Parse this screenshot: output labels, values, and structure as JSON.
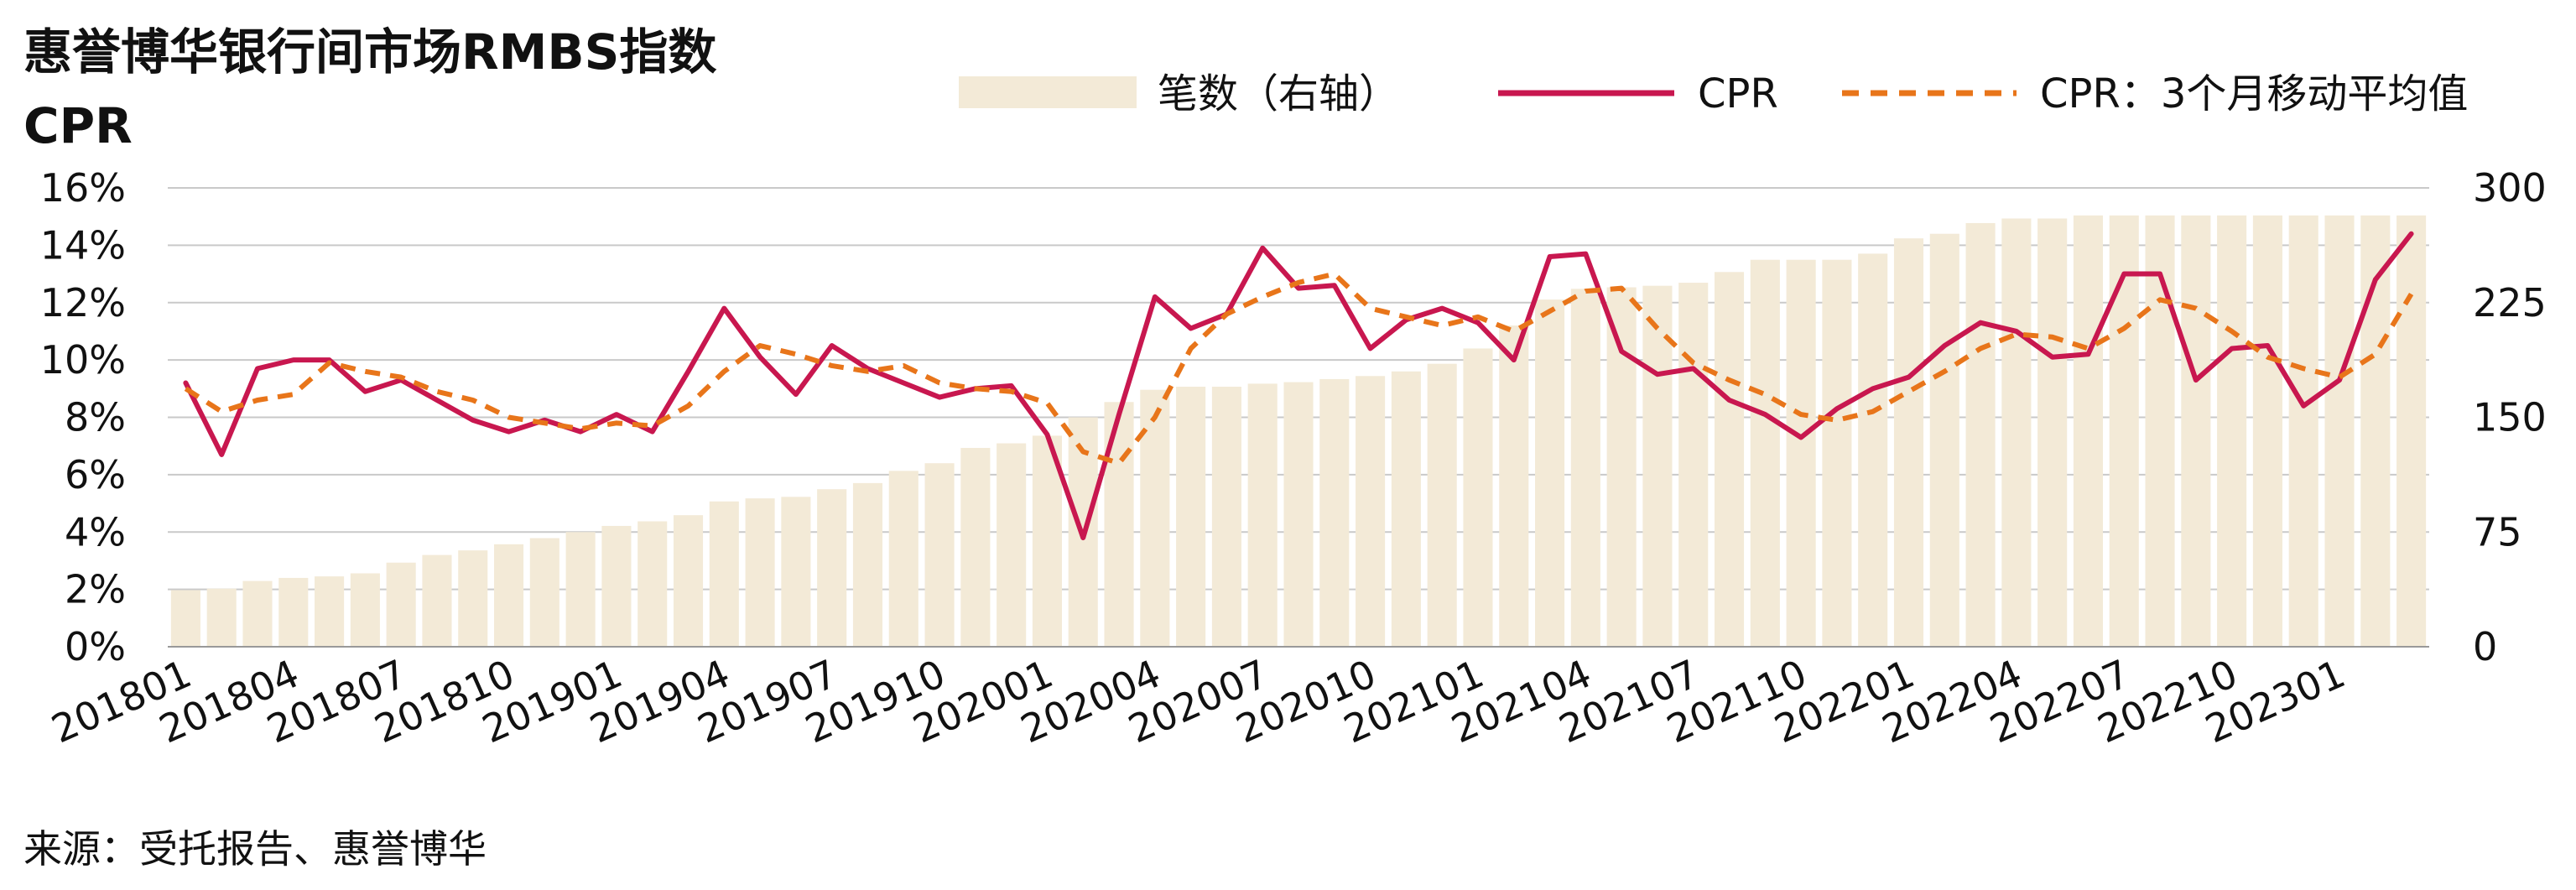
{
  "chart_data": {
    "type": "bar+line",
    "title": "惠誉博华银行间市场RMBS指数",
    "subtitle": "CPR",
    "source": "来源：受托报告、惠誉博华",
    "x_tick_labels": [
      "201801",
      "201804",
      "201807",
      "201810",
      "201901",
      "201904",
      "201907",
      "201910",
      "202001",
      "202004",
      "202007",
      "202010",
      "202101",
      "202104",
      "202107",
      "202110",
      "202201",
      "202204",
      "202207",
      "202210",
      "202301"
    ],
    "months": [
      "201801",
      "201802",
      "201803",
      "201804",
      "201805",
      "201806",
      "201807",
      "201808",
      "201809",
      "201810",
      "201811",
      "201812",
      "201901",
      "201902",
      "201903",
      "201904",
      "201905",
      "201906",
      "201907",
      "201908",
      "201909",
      "201910",
      "201911",
      "201912",
      "202001",
      "202002",
      "202003",
      "202004",
      "202005",
      "202006",
      "202007",
      "202008",
      "202009",
      "202010",
      "202011",
      "202012",
      "202101",
      "202102",
      "202103",
      "202104",
      "202105",
      "202106",
      "202107",
      "202108",
      "202109",
      "202110",
      "202111",
      "202112",
      "202201",
      "202202",
      "202203",
      "202204",
      "202205",
      "202206",
      "202207",
      "202208",
      "202209",
      "202210",
      "202211",
      "202212",
      "202301",
      "202302",
      "202303"
    ],
    "y_left": {
      "min": 0,
      "max": 16,
      "ticks": [
        "0%",
        "2%",
        "4%",
        "6%",
        "8%",
        "10%",
        "12%",
        "14%",
        "16%"
      ]
    },
    "y_right": {
      "min": 0,
      "max": 300,
      "ticks": [
        "0",
        "75",
        "150",
        "225",
        "300"
      ]
    },
    "grid": true,
    "legend": {
      "placement": "top-right"
    },
    "series": [
      {
        "name": "笔数（右轴）",
        "kind": "bar",
        "axis": "right",
        "color": "#F3EAD7",
        "values": [
          37,
          38,
          43,
          45,
          46,
          48,
          55,
          60,
          63,
          67,
          71,
          75,
          79,
          82,
          86,
          95,
          97,
          98,
          103,
          107,
          115,
          120,
          130,
          133,
          138,
          150,
          160,
          168,
          170,
          170,
          172,
          173,
          175,
          177,
          180,
          185,
          195,
          210,
          227,
          234,
          235,
          236,
          238,
          245,
          253,
          253,
          253,
          257,
          267,
          270,
          277,
          280,
          280,
          282,
          282,
          282,
          282,
          282,
          282,
          282,
          282,
          282,
          282
        ]
      },
      {
        "name": "CPR",
        "kind": "line",
        "axis": "left",
        "color": "#C8174F",
        "values": [
          9.2,
          6.7,
          9.7,
          10.0,
          10.0,
          8.9,
          9.3,
          8.6,
          7.9,
          7.5,
          7.9,
          7.5,
          8.1,
          7.5,
          9.6,
          11.8,
          10.1,
          8.8,
          10.5,
          9.7,
          9.2,
          8.7,
          9.0,
          9.1,
          7.4,
          3.8,
          8.1,
          12.2,
          11.1,
          11.6,
          13.9,
          12.5,
          12.6,
          10.4,
          11.4,
          11.8,
          11.3,
          10.0,
          13.6,
          13.7,
          10.3,
          9.5,
          9.7,
          8.6,
          8.1,
          7.3,
          8.3,
          9.0,
          9.4,
          10.5,
          11.3,
          11.0,
          10.1,
          10.2,
          13.0,
          13.0,
          9.3,
          10.4,
          10.5,
          8.4,
          9.3,
          12.8,
          14.4
        ]
      },
      {
        "name": "CPR：3个月移动平均值",
        "kind": "line-dashed",
        "axis": "left",
        "color": "#E8751A",
        "values": [
          9.0,
          8.2,
          8.6,
          8.8,
          9.9,
          9.6,
          9.4,
          8.9,
          8.6,
          8.0,
          7.8,
          7.6,
          7.8,
          7.7,
          8.4,
          9.6,
          10.5,
          10.2,
          9.8,
          9.6,
          9.8,
          9.2,
          9.0,
          8.9,
          8.5,
          6.8,
          6.4,
          8.0,
          10.4,
          11.6,
          12.2,
          12.7,
          13.0,
          11.8,
          11.5,
          11.2,
          11.5,
          11.0,
          11.7,
          12.4,
          12.5,
          11.1,
          9.9,
          9.3,
          8.8,
          8.1,
          7.9,
          8.2,
          8.9,
          9.6,
          10.4,
          10.9,
          10.8,
          10.4,
          11.1,
          12.1,
          11.8,
          11.0,
          10.1,
          9.7,
          9.4,
          10.2,
          12.3
        ]
      }
    ]
  }
}
